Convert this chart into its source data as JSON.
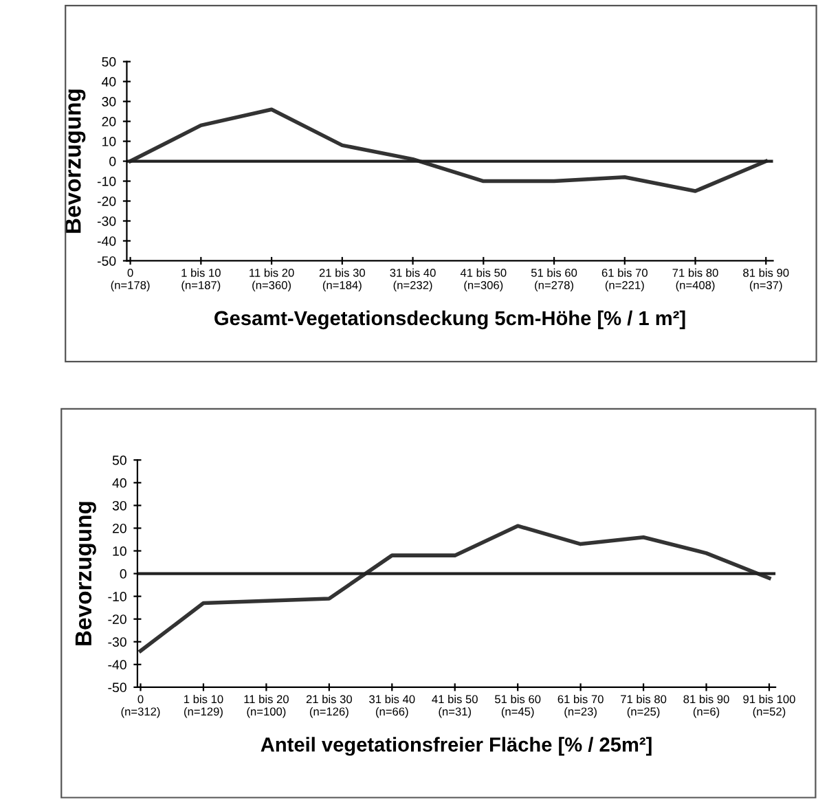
{
  "chart_data": [
    {
      "type": "line",
      "xlabel": "Gesamt-Vegetationsdeckung 5cm-Höhe [% / 1 m²]",
      "ylabel": "Bevorzugung",
      "categories": [
        "0\n(n=178)",
        "1 bis 10\n(n=187)",
        "11 bis 20\n(n=360)",
        "21 bis 30\n(n=184)",
        "31 bis 40\n(n=232)",
        "41 bis 50\n(n=306)",
        "51 bis 60\n(n=278)",
        "61 bis 70\n(n=221)",
        "71 bis 80\n(n=408)",
        "81 bis 90\n(n=37)"
      ],
      "series": [
        {
          "color": "#333333",
          "values": [
            0,
            18,
            26,
            8,
            1,
            -10,
            -10,
            -8,
            -15,
            0
          ]
        }
      ],
      "ref_lines": [
        {
          "axis": "y",
          "value": 0,
          "color": "#222222"
        }
      ],
      "ylim": [
        -50,
        50
      ],
      "yticks": [
        -50,
        -40,
        -30,
        -20,
        -10,
        0,
        10,
        20,
        30,
        40,
        50
      ],
      "grid": false,
      "legend": false,
      "marker": "none",
      "line_style": "solid"
    },
    {
      "type": "line",
      "xlabel": "Anteil vegetationsfreier Fläche [% / 25m²]",
      "ylabel": "Bevorzugung",
      "categories": [
        "0\n(n=312)",
        "1 bis 10\n(n=129)",
        "11 bis 20\n(n=100)",
        "21 bis 30\n(n=126)",
        "31 bis 40\n(n=66)",
        "41 bis 50\n(n=31)",
        "51 bis 60\n(n=45)",
        "61 bis 70\n(n=23)",
        "71 bis 80\n(n=25)",
        "81 bis 90\n(n=6)",
        "91 bis 100\n(n=52)"
      ],
      "series": [
        {
          "color": "#333333",
          "values": [
            -34,
            -13,
            -12,
            -11,
            8,
            8,
            21,
            13,
            16,
            9,
            -2
          ]
        }
      ],
      "ref_lines": [
        {
          "axis": "y",
          "value": 0,
          "color": "#222222"
        }
      ],
      "ylim": [
        -50,
        50
      ],
      "yticks": [
        -50,
        -40,
        -30,
        -20,
        -10,
        0,
        10,
        20,
        30,
        40,
        50
      ],
      "grid": false,
      "legend": false,
      "marker": "none",
      "line_style": "solid"
    }
  ]
}
